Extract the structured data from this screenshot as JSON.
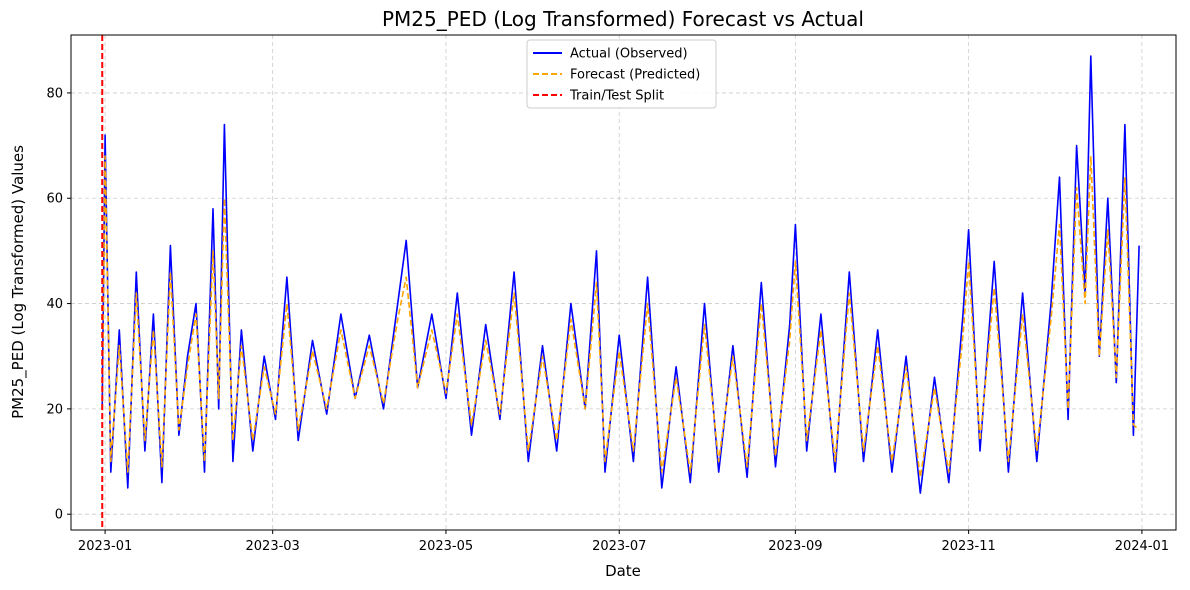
{
  "chart_data": {
    "type": "line",
    "title": "PM25_PED (Log Transformed) Forecast vs Actual",
    "xlabel": "Date",
    "ylabel": "PM25_PED (Log Transformed) Values",
    "x_ticks": [
      "2023-01",
      "2023-03",
      "2023-05",
      "2023-07",
      "2023-09",
      "2023-11",
      "2024-01"
    ],
    "x_tick_dates": [
      "2023-01-01",
      "2023-03-01",
      "2023-05-01",
      "2023-07-01",
      "2023-09-01",
      "2023-11-01",
      "2024-01-01"
    ],
    "y_ticks": [
      0,
      20,
      40,
      60,
      80
    ],
    "xlim": [
      "2022-12-20",
      "2024-01-13"
    ],
    "ylim": [
      -3,
      91
    ],
    "grid": true,
    "legend_position": "top-center",
    "split_date": "2022-12-31",
    "series": [
      {
        "name": "Actual (Observed)",
        "color": "#0000ff",
        "style": "solid",
        "x": [
          "2022-12-31",
          "2023-01-01",
          "2023-01-03",
          "2023-01-06",
          "2023-01-09",
          "2023-01-12",
          "2023-01-15",
          "2023-01-18",
          "2023-01-21",
          "2023-01-24",
          "2023-01-27",
          "2023-01-30",
          "2023-02-02",
          "2023-02-05",
          "2023-02-08",
          "2023-02-10",
          "2023-02-12",
          "2023-02-15",
          "2023-02-18",
          "2023-02-22",
          "2023-02-26",
          "2023-03-02",
          "2023-03-06",
          "2023-03-10",
          "2023-03-15",
          "2023-03-20",
          "2023-03-25",
          "2023-03-30",
          "2023-04-04",
          "2023-04-09",
          "2023-04-14",
          "2023-04-17",
          "2023-04-21",
          "2023-04-26",
          "2023-05-01",
          "2023-05-05",
          "2023-05-10",
          "2023-05-15",
          "2023-05-20",
          "2023-05-25",
          "2023-05-30",
          "2023-06-04",
          "2023-06-09",
          "2023-06-14",
          "2023-06-19",
          "2023-06-23",
          "2023-06-26",
          "2023-07-01",
          "2023-07-06",
          "2023-07-11",
          "2023-07-16",
          "2023-07-21",
          "2023-07-26",
          "2023-07-31",
          "2023-08-05",
          "2023-08-10",
          "2023-08-15",
          "2023-08-20",
          "2023-08-25",
          "2023-08-30",
          "2023-09-01",
          "2023-09-05",
          "2023-09-10",
          "2023-09-15",
          "2023-09-20",
          "2023-09-25",
          "2023-09-30",
          "2023-10-05",
          "2023-10-10",
          "2023-10-15",
          "2023-10-20",
          "2023-10-25",
          "2023-10-30",
          "2023-11-01",
          "2023-11-05",
          "2023-11-10",
          "2023-11-15",
          "2023-11-20",
          "2023-11-25",
          "2023-11-30",
          "2023-12-03",
          "2023-12-06",
          "2023-12-09",
          "2023-12-12",
          "2023-12-14",
          "2023-12-17",
          "2023-12-20",
          "2023-12-23",
          "2023-12-26",
          "2023-12-29",
          "2023-12-31"
        ],
        "values": [
          20,
          72,
          8,
          35,
          5,
          46,
          12,
          38,
          6,
          51,
          15,
          30,
          40,
          8,
          58,
          20,
          74,
          10,
          35,
          12,
          30,
          18,
          45,
          14,
          33,
          19,
          38,
          22,
          34,
          20,
          40,
          52,
          24,
          38,
          22,
          42,
          15,
          36,
          18,
          46,
          10,
          32,
          12,
          40,
          20,
          50,
          8,
          34,
          10,
          45,
          5,
          28,
          6,
          40,
          8,
          32,
          7,
          44,
          9,
          36,
          55,
          12,
          38,
          8,
          46,
          10,
          35,
          8,
          30,
          4,
          26,
          6,
          38,
          54,
          12,
          48,
          8,
          42,
          10,
          40,
          64,
          18,
          70,
          42,
          87,
          30,
          60,
          25,
          74,
          15,
          51
        ]
      },
      {
        "name": "Forecast (Predicted)",
        "color": "#ffa500",
        "style": "dashed",
        "x": [
          "2022-12-31",
          "2023-01-01",
          "2023-01-03",
          "2023-01-06",
          "2023-01-09",
          "2023-01-12",
          "2023-01-15",
          "2023-01-18",
          "2023-01-21",
          "2023-01-24",
          "2023-01-27",
          "2023-01-30",
          "2023-02-02",
          "2023-02-05",
          "2023-02-08",
          "2023-02-10",
          "2023-02-12",
          "2023-02-15",
          "2023-02-18",
          "2023-02-22",
          "2023-02-26",
          "2023-03-02",
          "2023-03-06",
          "2023-03-10",
          "2023-03-15",
          "2023-03-20",
          "2023-03-25",
          "2023-03-30",
          "2023-04-04",
          "2023-04-09",
          "2023-04-14",
          "2023-04-17",
          "2023-04-21",
          "2023-04-26",
          "2023-05-01",
          "2023-05-05",
          "2023-05-10",
          "2023-05-15",
          "2023-05-20",
          "2023-05-25",
          "2023-05-30",
          "2023-06-04",
          "2023-06-09",
          "2023-06-14",
          "2023-06-19",
          "2023-06-23",
          "2023-06-26",
          "2023-07-01",
          "2023-07-06",
          "2023-07-11",
          "2023-07-16",
          "2023-07-21",
          "2023-07-26",
          "2023-07-31",
          "2023-08-05",
          "2023-08-10",
          "2023-08-15",
          "2023-08-20",
          "2023-08-25",
          "2023-08-30",
          "2023-09-01",
          "2023-09-05",
          "2023-09-10",
          "2023-09-15",
          "2023-09-20",
          "2023-09-25",
          "2023-09-30",
          "2023-10-05",
          "2023-10-10",
          "2023-10-15",
          "2023-10-20",
          "2023-10-25",
          "2023-10-30",
          "2023-11-01",
          "2023-11-05",
          "2023-11-10",
          "2023-11-15",
          "2023-11-20",
          "2023-11-25",
          "2023-11-30",
          "2023-12-03",
          "2023-12-06",
          "2023-12-09",
          "2023-12-12",
          "2023-12-14",
          "2023-12-17",
          "2023-12-20",
          "2023-12-23",
          "2023-12-26",
          "2023-12-29",
          "2023-12-31"
        ],
        "values": [
          18,
          68,
          10,
          32,
          8,
          42,
          14,
          35,
          9,
          46,
          16,
          28,
          38,
          10,
          50,
          22,
          60,
          14,
          32,
          14,
          28,
          19,
          40,
          16,
          31,
          20,
          35,
          22,
          32,
          21,
          37,
          45,
          24,
          35,
          23,
          38,
          17,
          33,
          19,
          42,
          12,
          30,
          14,
          37,
          20,
          44,
          10,
          31,
          12,
          40,
          8,
          26,
          8,
          36,
          10,
          30,
          9,
          40,
          11,
          33,
          48,
          14,
          35,
          10,
          42,
          12,
          32,
          10,
          28,
          7,
          24,
          8,
          34,
          48,
          14,
          43,
          10,
          38,
          12,
          37,
          55,
          20,
          62,
          40,
          68,
          30,
          54,
          26,
          64,
          17,
          16
        ]
      }
    ]
  }
}
